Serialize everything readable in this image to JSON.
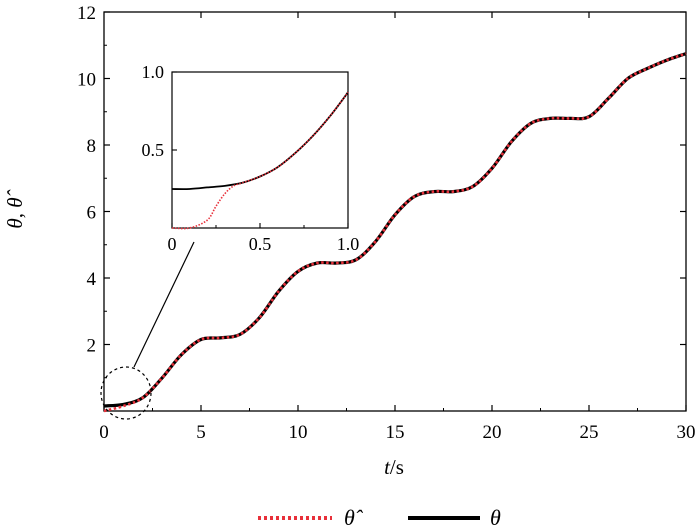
{
  "chart_data": {
    "type": "line",
    "xlabel_var": "t",
    "xlabel_unit": "/s",
    "ylabel": "θ, θ̂",
    "xlim": [
      0,
      30
    ],
    "ylim": [
      0,
      12
    ],
    "xticks": [
      0,
      5,
      10,
      15,
      20,
      25,
      30
    ],
    "yticks": [
      2,
      4,
      6,
      8,
      10,
      12
    ],
    "grid": false,
    "legend_position": "bottom",
    "series": [
      {
        "name": "θ̂",
        "color": "#e8303a",
        "style": "dotted",
        "x": [
          0,
          1,
          2,
          3,
          4,
          5,
          6,
          7,
          8,
          9,
          10,
          11,
          12,
          13,
          14,
          15,
          16,
          17,
          18,
          19,
          20,
          21,
          22,
          23,
          24,
          25,
          26,
          27,
          28,
          29,
          30
        ],
        "y": [
          0.0,
          0.15,
          0.4,
          1.0,
          1.7,
          2.15,
          2.2,
          2.3,
          2.8,
          3.6,
          4.2,
          4.45,
          4.45,
          4.55,
          5.1,
          5.9,
          6.45,
          6.6,
          6.6,
          6.75,
          7.3,
          8.1,
          8.65,
          8.8,
          8.8,
          8.85,
          9.4,
          10.0,
          10.3,
          10.55,
          10.75
        ]
      },
      {
        "name": "θ",
        "color": "#000000",
        "style": "solid",
        "x": [
          0,
          1,
          2,
          3,
          4,
          5,
          6,
          7,
          8,
          9,
          10,
          11,
          12,
          13,
          14,
          15,
          16,
          17,
          18,
          19,
          20,
          21,
          22,
          23,
          24,
          25,
          26,
          27,
          28,
          29,
          30
        ],
        "y": [
          0.15,
          0.2,
          0.4,
          1.0,
          1.7,
          2.15,
          2.2,
          2.3,
          2.8,
          3.6,
          4.2,
          4.45,
          4.45,
          4.55,
          5.1,
          5.9,
          6.45,
          6.6,
          6.6,
          6.75,
          7.3,
          8.1,
          8.65,
          8.8,
          8.8,
          8.85,
          9.4,
          10.0,
          10.3,
          10.55,
          10.75
        ]
      }
    ],
    "inset": {
      "xlim": [
        0,
        1.0
      ],
      "ylim": [
        0,
        1.0
      ],
      "xticks": [
        0,
        0.5,
        1.0
      ],
      "xtick_labels": [
        "0",
        "0.5",
        "1.0"
      ],
      "yticks": [
        0.5,
        1.0
      ],
      "ytick_labels": [
        "0.5",
        "1.0"
      ],
      "series": [
        {
          "name": "θ̂",
          "x": [
            0.0,
            0.1,
            0.2,
            0.25,
            0.3,
            0.35,
            0.4,
            0.5,
            0.6,
            0.7,
            0.8,
            0.9,
            1.0
          ],
          "y": [
            0.0,
            0.0,
            0.05,
            0.14,
            0.22,
            0.27,
            0.29,
            0.33,
            0.39,
            0.48,
            0.59,
            0.72,
            0.87
          ]
        },
        {
          "name": "θ",
          "x": [
            0.0,
            0.1,
            0.2,
            0.3,
            0.4,
            0.5,
            0.6,
            0.7,
            0.8,
            0.9,
            1.0
          ],
          "y": [
            0.25,
            0.25,
            0.26,
            0.27,
            0.29,
            0.33,
            0.39,
            0.48,
            0.59,
            0.72,
            0.87
          ]
        }
      ]
    }
  }
}
